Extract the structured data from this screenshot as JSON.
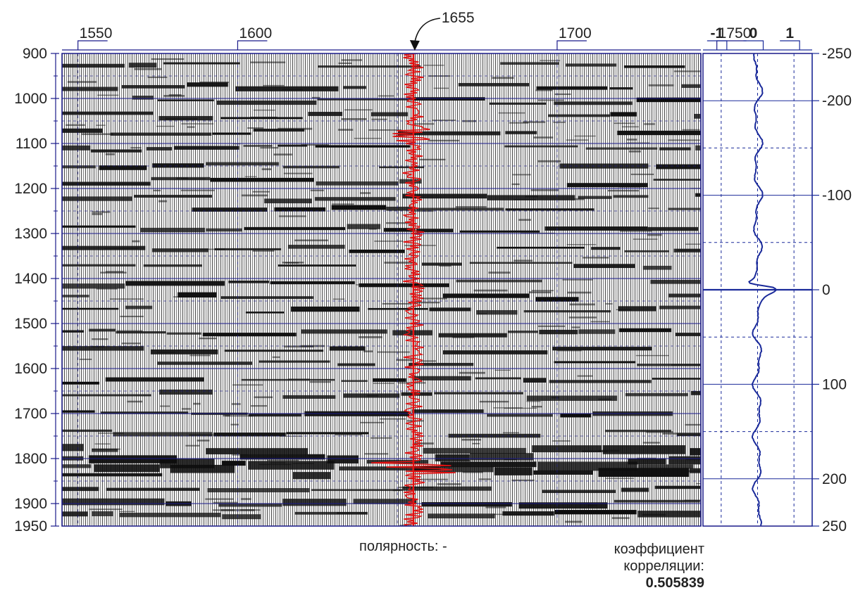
{
  "chart_data": {
    "type": "seismic-section-with-correlation-trace",
    "seismic": {
      "x_ticks": [
        1550,
        1600,
        1650,
        1700,
        1750
      ],
      "x_tick_labels": [
        "1550",
        "1600",
        "1700",
        "1750"
      ],
      "x_range": [
        1545,
        1745
      ],
      "y_range": [
        900,
        1950
      ],
      "y_ticks": [
        900,
        1000,
        1100,
        1200,
        1300,
        1400,
        1500,
        1600,
        1700,
        1800,
        1900,
        1950
      ],
      "y_tick_labels": [
        "900",
        "1000",
        "1100",
        "1200",
        "1300",
        "1400",
        "1500",
        "1600",
        "1700",
        "1800",
        "1900",
        "1950"
      ],
      "highlight_trace": {
        "x": 1655,
        "label": "1655",
        "color": "#e01010"
      },
      "grid_color": "#1a1a8a"
    },
    "correlation": {
      "x_range": [
        -1.5,
        1.5
      ],
      "x_ticks": [
        -1,
        0,
        1
      ],
      "x_tick_labels": [
        "-1",
        "0",
        "1"
      ],
      "y_range": [
        -250,
        250
      ],
      "y_tick_labels": [
        "-250",
        "-200",
        "-100",
        "0",
        "100",
        "200",
        "250"
      ],
      "y_tick_values": [
        -250,
        -200,
        -100,
        0,
        100,
        200,
        250
      ],
      "trace_color": "#1a2a9a",
      "peak": {
        "lag": 0,
        "value": 0.505839
      }
    },
    "annotations": {
      "polarity_label": "полярность: -",
      "coef_label_1": "коэффициент",
      "coef_label_2": "корреляции:",
      "coef_value": "0.505839"
    }
  }
}
